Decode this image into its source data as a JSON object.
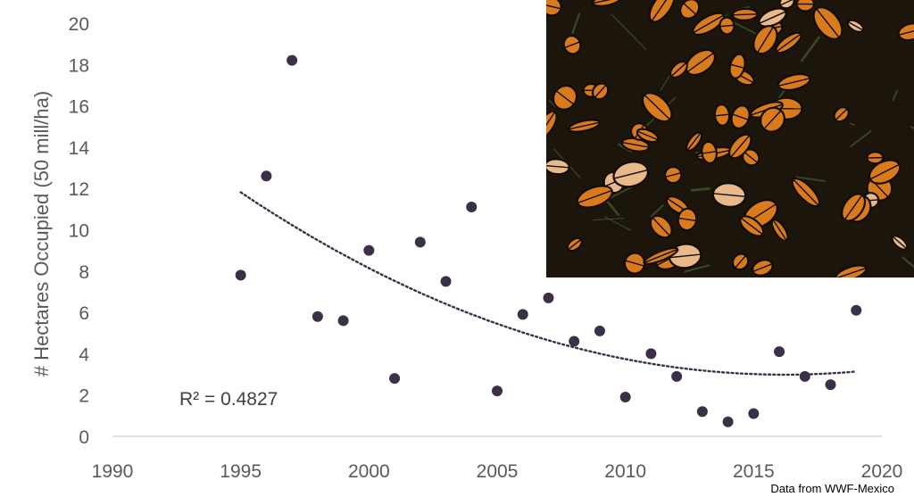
{
  "chart_data": {
    "type": "scatter",
    "xlim": [
      1990,
      2020
    ],
    "ylim": [
      0,
      20
    ],
    "x_ticks": [
      "1990",
      "1995",
      "2000",
      "2005",
      "2010",
      "2015",
      "2020"
    ],
    "y_ticks": [
      "0",
      "2",
      "4",
      "6",
      "8",
      "10",
      "12",
      "14",
      "16",
      "18",
      "20"
    ],
    "ylabel": "# Hectares Occupied  (50 mill/ha)",
    "xlabel": "",
    "grid": false,
    "points": [
      {
        "x": 1995,
        "y": 7.8
      },
      {
        "x": 1996,
        "y": 12.6
      },
      {
        "x": 1997,
        "y": 18.2
      },
      {
        "x": 1998,
        "y": 5.8
      },
      {
        "x": 1999,
        "y": 5.6
      },
      {
        "x": 2000,
        "y": 9.0
      },
      {
        "x": 2001,
        "y": 2.8
      },
      {
        "x": 2002,
        "y": 9.4
      },
      {
        "x": 2003,
        "y": 7.5
      },
      {
        "x": 2004,
        "y": 11.1
      },
      {
        "x": 2005,
        "y": 2.2
      },
      {
        "x": 2006,
        "y": 5.9
      },
      {
        "x": 2007,
        "y": 6.7
      },
      {
        "x": 2008,
        "y": 4.6
      },
      {
        "x": 2009,
        "y": 5.1
      },
      {
        "x": 2010,
        "y": 1.9
      },
      {
        "x": 2011,
        "y": 4.0
      },
      {
        "x": 2012,
        "y": 2.9
      },
      {
        "x": 2013,
        "y": 1.2
      },
      {
        "x": 2014,
        "y": 0.7
      },
      {
        "x": 2015,
        "y": 1.1
      },
      {
        "x": 2016,
        "y": 4.1
      },
      {
        "x": 2017,
        "y": 2.9
      },
      {
        "x": 2018,
        "y": 2.5
      },
      {
        "x": 2019,
        "y": 6.1
      }
    ],
    "trendline": {
      "type": "polynomial-2",
      "style": "dotted",
      "x_range": [
        1995,
        2019
      ],
      "values": [
        {
          "x": 1995,
          "y": 11.9
        },
        {
          "x": 2000,
          "y": 8.0
        },
        {
          "x": 2005,
          "y": 5.4
        },
        {
          "x": 2010,
          "y": 3.9
        },
        {
          "x": 2015,
          "y": 3.0
        },
        {
          "x": 2019,
          "y": 3.1
        }
      ]
    },
    "annotation": "R² = 0.4827",
    "source_note": "Data from WWF-Mexico",
    "point_color": "#3b3048",
    "trend_color": "#3b3048"
  },
  "inset_photo": {
    "subject": "monarch-butterfly-cluster-photo",
    "colors": {
      "orange": "#d97a1c",
      "dark": "#1c150c",
      "green": "#3f5a2c"
    }
  }
}
